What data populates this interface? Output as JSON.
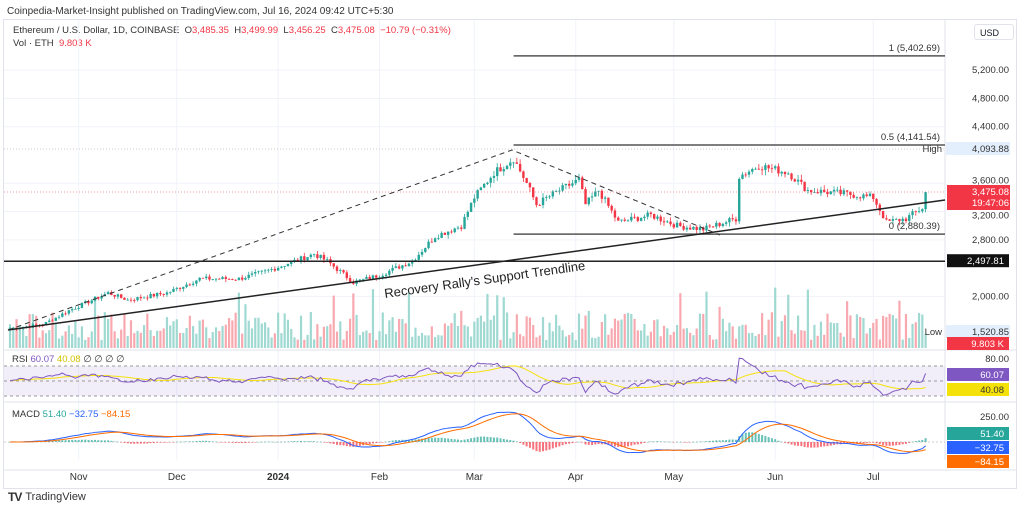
{
  "publisher_line": "Coinpedia-Market-Insight published on TradingView.com, Jul 16, 2024 09:42 UTC+5:30",
  "symbol": {
    "name": "Ethereum / U.S. Dollar, 1D, COINBASE",
    "o_label": "O",
    "o": "3,485.35",
    "h_label": "H",
    "h": "3,499.99",
    "l_label": "L",
    "l": "3,456.25",
    "c_label": "C",
    "c": "3,475.08",
    "change": "−10.79 (−0.31%)"
  },
  "volume": {
    "label": "Vol · ETH",
    "value": "9.803 K"
  },
  "currency": "USD",
  "price_axis": [
    "5,200.00",
    "4,800.00",
    "4,400.00",
    "3,600.00",
    "3,200.00",
    "2,800.00",
    "2,000.00"
  ],
  "price_ticks": [
    5200,
    4800,
    4400,
    3600,
    3200,
    2800,
    2000
  ],
  "badges": {
    "high_label": "High",
    "high": "4,093.88",
    "last": "3,475.08",
    "countdown": "19:47:06",
    "level": "2,497.81",
    "low_label": "Low",
    "low": "1,520.85",
    "vol": "9.803 K"
  },
  "fib": [
    {
      "label": "1 (5,402.69)",
      "price": 5402.69
    },
    {
      "label": "0.5 (4,141.54)",
      "price": 4141.54
    },
    {
      "label": "0 (2,880.39)",
      "price": 2880.39
    }
  ],
  "support_level": 2497.81,
  "annotation": "Recovery Rally's Support Trendline",
  "rsi": {
    "label": "RSI",
    "v1": "60.07",
    "v2": "40.08",
    "extra": "∅ ∅ ∅ ∅",
    "axis": "80.00",
    "badge1": "60.07",
    "badge2": "40.08"
  },
  "macd": {
    "label": "MACD",
    "v1": "51.40",
    "v2": "−32.75",
    "v3": "−84.15",
    "axis": "250.00",
    "badge1": "51.40",
    "badge2": "−32.75",
    "badge3": "−84.15"
  },
  "time_axis": [
    {
      "label": "Nov",
      "day": 21
    },
    {
      "label": "Dec",
      "day": 51
    },
    {
      "label": "2024",
      "day": 82,
      "bold": true
    },
    {
      "label": "Feb",
      "day": 113
    },
    {
      "label": "Mar",
      "day": 142
    },
    {
      "label": "Apr",
      "day": 173
    },
    {
      "label": "May",
      "day": 203
    },
    {
      "label": "Jun",
      "day": 234
    },
    {
      "label": "Jul",
      "day": 264
    }
  ],
  "footer": "TradingView",
  "colors": {
    "up": "#26a69a",
    "down": "#f23645",
    "rsi": "#7e57c2",
    "rsi_ma": "#f5e10a",
    "macd": "#2962ff",
    "signal": "#ff6d00"
  },
  "chart_data": {
    "type": "candlestick",
    "x_unit": "days since Oct 10 2023",
    "close_path": [
      [
        0,
        1550
      ],
      [
        10,
        1600
      ],
      [
        18,
        1800
      ],
      [
        30,
        2050
      ],
      [
        36,
        1950
      ],
      [
        48,
        2050
      ],
      [
        58,
        2250
      ],
      [
        70,
        2250
      ],
      [
        78,
        2350
      ],
      [
        93,
        2600
      ],
      [
        97,
        2500
      ],
      [
        105,
        2200
      ],
      [
        113,
        2300
      ],
      [
        123,
        2500
      ],
      [
        130,
        2850
      ],
      [
        138,
        3000
      ],
      [
        142,
        3400
      ],
      [
        148,
        3750
      ],
      [
        154,
        3950
      ],
      [
        158,
        3600
      ],
      [
        161,
        3300
      ],
      [
        168,
        3500
      ],
      [
        174,
        3650
      ],
      [
        176,
        3300
      ],
      [
        180,
        3500
      ],
      [
        186,
        3050
      ],
      [
        196,
        3150
      ],
      [
        204,
        3000
      ],
      [
        212,
        2950
      ],
      [
        222,
        3100
      ],
      [
        223,
        3700
      ],
      [
        229,
        3850
      ],
      [
        238,
        3750
      ],
      [
        244,
        3500
      ],
      [
        256,
        3450
      ],
      [
        264,
        3400
      ],
      [
        268,
        3050
      ],
      [
        274,
        3100
      ],
      [
        279,
        3250
      ],
      [
        280,
        3475
      ]
    ]
  }
}
